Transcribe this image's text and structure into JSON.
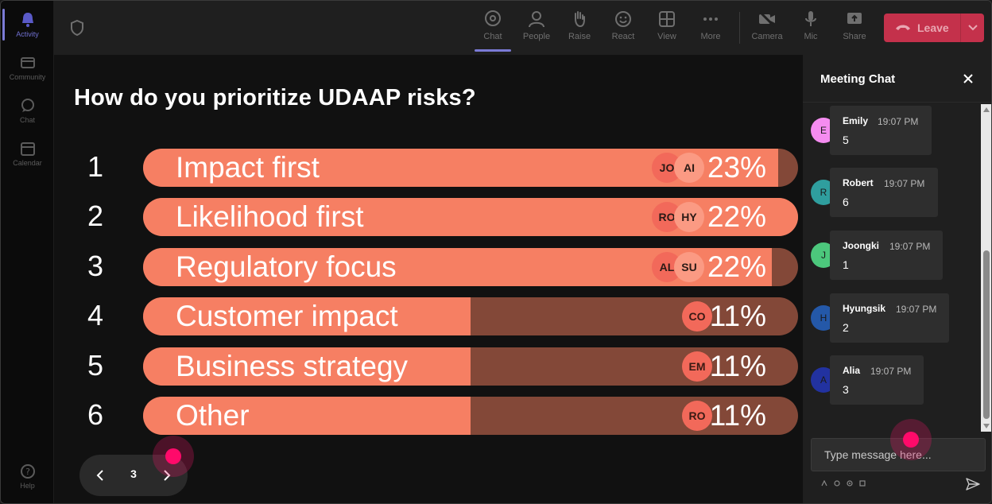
{
  "rail": {
    "items": [
      {
        "label": "Activity",
        "icon": "bell-icon",
        "active": true
      },
      {
        "label": "Community",
        "icon": "community-icon",
        "active": false
      },
      {
        "label": "Chat",
        "icon": "chat-icon",
        "active": false
      },
      {
        "label": "Calendar",
        "icon": "calendar-icon",
        "active": false
      }
    ],
    "help": {
      "label": "Help",
      "icon": "help-icon"
    }
  },
  "toolbar": {
    "chat": "Chat",
    "people": "People",
    "raise": "Raise",
    "react": "React",
    "view": "View",
    "more": "More",
    "camera": "Camera",
    "mic": "Mic",
    "share": "Share",
    "leave": "Leave"
  },
  "poll": {
    "question": "How do you prioritize UDAAP risks?",
    "options": [
      {
        "num": "1",
        "label": "Impact first",
        "percent": "23%",
        "fraction": 0.97,
        "avatars": [
          "JO",
          "AI"
        ]
      },
      {
        "num": "2",
        "label": "Likelihood first",
        "percent": "22%",
        "fraction": 1.0,
        "avatars": [
          "RO",
          "HY"
        ]
      },
      {
        "num": "3",
        "label": "Regulatory focus",
        "percent": "22%",
        "fraction": 0.96,
        "avatars": [
          "AL",
          "SU"
        ]
      },
      {
        "num": "4",
        "label": "Customer impact",
        "percent": "11%",
        "fraction": 0.5,
        "avatars": [
          "CO"
        ]
      },
      {
        "num": "5",
        "label": "Business strategy",
        "percent": "11%",
        "fraction": 0.5,
        "avatars": [
          "EM"
        ]
      },
      {
        "num": "6",
        "label": "Other",
        "percent": "11%",
        "fraction": 0.5,
        "avatars": [
          "RO"
        ]
      }
    ],
    "pager": {
      "page": "3"
    }
  },
  "chat": {
    "title": "Meeting Chat",
    "messages": [
      {
        "initial": "E",
        "name": "Emily",
        "time": "19:07 PM",
        "text": "5",
        "color": "#f58cf0"
      },
      {
        "initial": "R",
        "name": "Robert",
        "time": "19:07 PM",
        "text": "6",
        "color": "#2f9e9e"
      },
      {
        "initial": "J",
        "name": "Joongki",
        "time": "19:07 PM",
        "text": "1",
        "color": "#4cc77c"
      },
      {
        "initial": "H",
        "name": "Hyungsik",
        "time": "19:07 PM",
        "text": "2",
        "color": "#2458a8"
      },
      {
        "initial": "A",
        "name": "Alia",
        "time": "19:07 PM",
        "text": "3",
        "color": "#2232a0"
      }
    ],
    "input_placeholder": "Type message here..."
  },
  "colors": {
    "bar_fill": "#f67f63",
    "bar_track": "#834838",
    "leave": "#c4314b",
    "accent": "#7b7bd6"
  }
}
